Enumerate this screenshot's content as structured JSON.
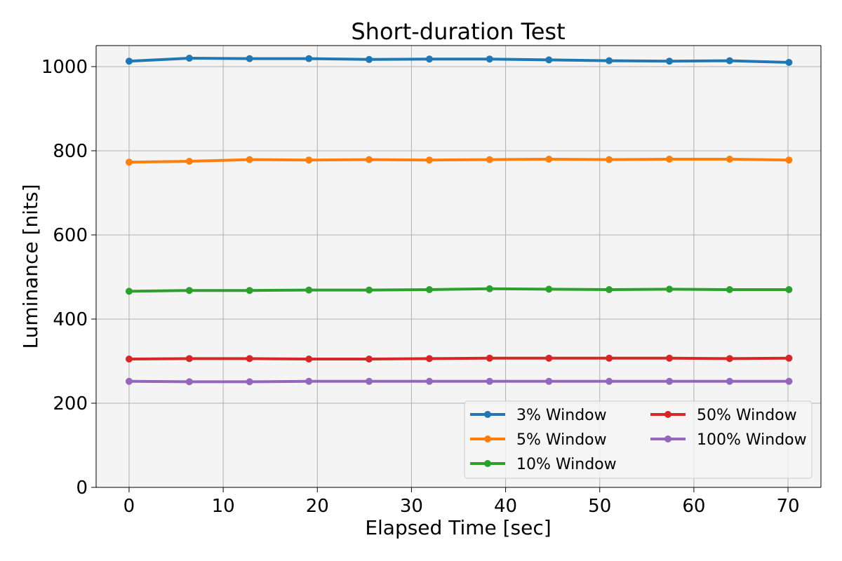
{
  "chart_data": {
    "type": "line",
    "title": "Short-duration Test",
    "xlabel": "Elapsed Time [sec]",
    "ylabel": "Luminance [nits]",
    "xlim": [
      -3.5,
      73.5
    ],
    "ylim": [
      0,
      1050
    ],
    "xticks": [
      0,
      10,
      20,
      30,
      40,
      50,
      60,
      70
    ],
    "yticks": [
      0,
      200,
      400,
      600,
      800,
      1000
    ],
    "grid": true,
    "legend_position": "lower-right",
    "legend_columns": 2,
    "x": [
      0,
      6.4,
      12.8,
      19.1,
      25.5,
      31.9,
      38.3,
      44.6,
      51.0,
      57.4,
      63.8,
      70.1
    ],
    "series": [
      {
        "name": "3% Window",
        "color": "#1f77b4",
        "values": [
          1013,
          1020,
          1019,
          1019,
          1017,
          1018,
          1018,
          1016,
          1014,
          1013,
          1014,
          1010
        ]
      },
      {
        "name": "5% Window",
        "color": "#ff7f0e",
        "values": [
          773,
          775,
          779,
          778,
          779,
          778,
          779,
          780,
          779,
          780,
          780,
          778
        ]
      },
      {
        "name": "10% Window",
        "color": "#2ca02c",
        "values": [
          466,
          468,
          468,
          469,
          469,
          470,
          472,
          471,
          470,
          471,
          470,
          470
        ]
      },
      {
        "name": "50% Window",
        "color": "#d62728",
        "values": [
          305,
          306,
          306,
          305,
          305,
          306,
          307,
          307,
          307,
          307,
          306,
          307
        ]
      },
      {
        "name": "100% Window",
        "color": "#9467bd",
        "values": [
          252,
          251,
          251,
          252,
          252,
          252,
          252,
          252,
          252,
          252,
          252,
          252
        ]
      }
    ]
  }
}
